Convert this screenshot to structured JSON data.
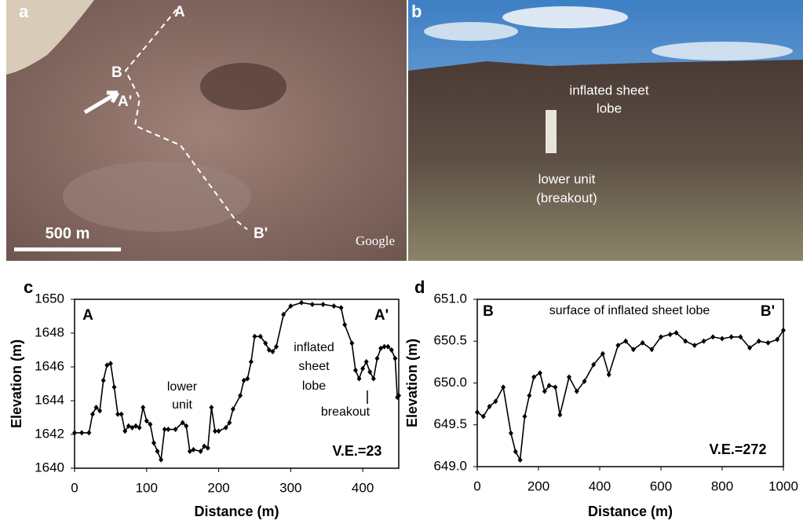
{
  "photos": {
    "a": {
      "letter": "a",
      "labels": [
        "A",
        "B",
        "A'",
        "B'"
      ],
      "scale": "500 m",
      "credit": "Google"
    },
    "b": {
      "letter": "b",
      "upper": [
        "inflated sheet",
        "lobe"
      ],
      "lower": [
        "lower unit",
        "(breakout)"
      ]
    }
  },
  "chart_data": [
    {
      "type": "line",
      "letter": "c",
      "x_label": "Distance (m)",
      "y_label": "Elevation (m)",
      "color": "#000000",
      "xlim": [
        0,
        450
      ],
      "ylim": [
        1640,
        1650
      ],
      "xticks": [
        0,
        100,
        200,
        300,
        400
      ],
      "yticks": [
        1640,
        1642,
        1644,
        1646,
        1648,
        1650
      ],
      "annotations": [
        [
          "A"
        ],
        [
          "A'"
        ],
        [
          "lower",
          "unit"
        ],
        [
          "inflated",
          "sheet",
          "lobe"
        ],
        [
          "breakout"
        ],
        [
          "V.E.=23"
        ]
      ],
      "series": [
        {
          "x": [
            0,
            10,
            20,
            25,
            30,
            35,
            40,
            45,
            50,
            55,
            60,
            65,
            70,
            75,
            80,
            85,
            90,
            95,
            100,
            105,
            110,
            115,
            120,
            125,
            130,
            140,
            150,
            155,
            160,
            165,
            175,
            180,
            185,
            190,
            195,
            200,
            210,
            215,
            220,
            230,
            235,
            240,
            245,
            250,
            258,
            265,
            270,
            275,
            280,
            290,
            300,
            315,
            330,
            345,
            360,
            370,
            375,
            385,
            390,
            395,
            400,
            405,
            410,
            415,
            420,
            425,
            430,
            435,
            440,
            445,
            448,
            450
          ],
          "values": [
            1642.1,
            1642.1,
            1642.1,
            1643.2,
            1643.6,
            1643.4,
            1645.2,
            1646.1,
            1646.2,
            1644.8,
            1643.2,
            1643.2,
            1642.2,
            1642.5,
            1642.4,
            1642.5,
            1642.4,
            1643.6,
            1642.8,
            1642.6,
            1641.5,
            1641.0,
            1640.5,
            1642.3,
            1642.3,
            1642.3,
            1642.7,
            1642.5,
            1641.0,
            1641.1,
            1641.0,
            1641.3,
            1641.2,
            1643.6,
            1642.2,
            1642.2,
            1642.4,
            1642.7,
            1643.5,
            1644.3,
            1645.2,
            1645.3,
            1646.3,
            1647.8,
            1647.8,
            1647.4,
            1647.0,
            1646.9,
            1647.2,
            1649.1,
            1649.6,
            1649.8,
            1649.7,
            1649.7,
            1649.6,
            1649.5,
            1648.5,
            1647.4,
            1645.8,
            1645.3,
            1645.9,
            1646.3,
            1645.7,
            1645.3,
            1646.5,
            1647.1,
            1647.2,
            1647.2,
            1647.0,
            1646.5,
            1644.2,
            1644.3
          ]
        }
      ]
    },
    {
      "type": "line",
      "letter": "d",
      "x_label": "Distance (m)",
      "y_label": "Elevation (m)",
      "color": "#000000",
      "xlim": [
        0,
        1000
      ],
      "ylim": [
        649.0,
        651.0
      ],
      "xticks": [
        0,
        200,
        400,
        600,
        800,
        1000
      ],
      "yticks": [
        {
          "value": 649.0,
          "label": "649.0"
        },
        {
          "value": 649.5,
          "label": "649.5"
        },
        {
          "value": 650.0,
          "label": "650.0"
        },
        {
          "value": 650.5,
          "label": "650.5"
        },
        {
          "value": 651.0,
          "label": "651.0"
        }
      ],
      "annotations": [
        [
          "B"
        ],
        [
          "B'"
        ],
        [
          "surface of inflated sheet lobe"
        ],
        [
          "V.E.=272"
        ]
      ],
      "series": [
        {
          "x": [
            0,
            20,
            40,
            60,
            85,
            110,
            125,
            140,
            155,
            170,
            185,
            205,
            220,
            235,
            255,
            270,
            300,
            325,
            350,
            380,
            410,
            430,
            460,
            485,
            510,
            540,
            570,
            600,
            630,
            650,
            680,
            710,
            740,
            770,
            800,
            830,
            860,
            890,
            920,
            950,
            980,
            1000
          ],
          "values": [
            649.65,
            649.6,
            649.72,
            649.78,
            649.95,
            649.4,
            649.18,
            649.08,
            649.6,
            649.85,
            650.07,
            650.12,
            649.9,
            649.97,
            649.95,
            649.62,
            650.07,
            649.9,
            650.02,
            650.22,
            650.35,
            650.1,
            650.45,
            650.5,
            650.4,
            650.48,
            650.4,
            650.55,
            650.58,
            650.6,
            650.5,
            650.45,
            650.5,
            650.55,
            650.53,
            650.55,
            650.55,
            650.42,
            650.5,
            650.48,
            650.52,
            650.63
          ]
        }
      ]
    }
  ]
}
